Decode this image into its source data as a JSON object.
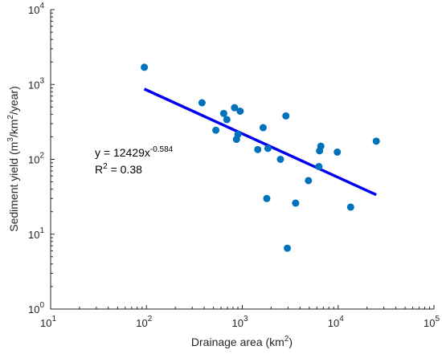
{
  "chart_data": {
    "type": "scatter",
    "xscale": "log",
    "yscale": "log",
    "xlim": [
      10,
      100000
    ],
    "ylim": [
      1,
      10000
    ],
    "xlabel": {
      "base": "Drainage area (km",
      "sup": "2",
      "tail": ")"
    },
    "ylabel": {
      "parts": [
        {
          "t": "Sediment yield (m"
        },
        {
          "t": "3",
          "sup": true
        },
        {
          "t": "/km"
        },
        {
          "t": "2",
          "sup": true
        },
        {
          "t": "/year)"
        }
      ]
    },
    "x_ticks": [
      {
        "value": 10,
        "base": "10",
        "exp": "1"
      },
      {
        "value": 100,
        "base": "10",
        "exp": "2"
      },
      {
        "value": 1000,
        "base": "10",
        "exp": "3"
      },
      {
        "value": 10000,
        "base": "10",
        "exp": "4"
      },
      {
        "value": 100000,
        "base": "10",
        "exp": "5"
      }
    ],
    "y_ticks": [
      {
        "value": 1,
        "base": "10",
        "exp": "0"
      },
      {
        "value": 10,
        "base": "10",
        "exp": "1"
      },
      {
        "value": 100,
        "base": "10",
        "exp": "2"
      },
      {
        "value": 1000,
        "base": "10",
        "exp": "3"
      },
      {
        "value": 10000,
        "base": "10",
        "exp": "4"
      }
    ],
    "points": [
      {
        "x": 95,
        "y": 1700
      },
      {
        "x": 380,
        "y": 570
      },
      {
        "x": 530,
        "y": 245
      },
      {
        "x": 640,
        "y": 410
      },
      {
        "x": 690,
        "y": 340
      },
      {
        "x": 830,
        "y": 490
      },
      {
        "x": 870,
        "y": 185
      },
      {
        "x": 900,
        "y": 215
      },
      {
        "x": 950,
        "y": 440
      },
      {
        "x": 1450,
        "y": 135
      },
      {
        "x": 1650,
        "y": 265
      },
      {
        "x": 1800,
        "y": 30
      },
      {
        "x": 1850,
        "y": 140
      },
      {
        "x": 2500,
        "y": 100
      },
      {
        "x": 2850,
        "y": 380
      },
      {
        "x": 2950,
        "y": 6.5
      },
      {
        "x": 3600,
        "y": 26
      },
      {
        "x": 4900,
        "y": 52
      },
      {
        "x": 6300,
        "y": 80
      },
      {
        "x": 6400,
        "y": 130
      },
      {
        "x": 6600,
        "y": 150
      },
      {
        "x": 9800,
        "y": 125
      },
      {
        "x": 13500,
        "y": 23
      },
      {
        "x": 25000,
        "y": 175
      }
    ],
    "fit": {
      "coef": 12429,
      "exp": -0.584,
      "x_range": [
        95,
        25000
      ],
      "color": "#0000ee"
    },
    "point_color": "#0072bd",
    "annotation": {
      "eq_text": "y = 12429x",
      "eq_sup": "-0.584",
      "r2_prefix": "R",
      "r2_sup": "2",
      "r2_rest": " = 0.38"
    }
  }
}
